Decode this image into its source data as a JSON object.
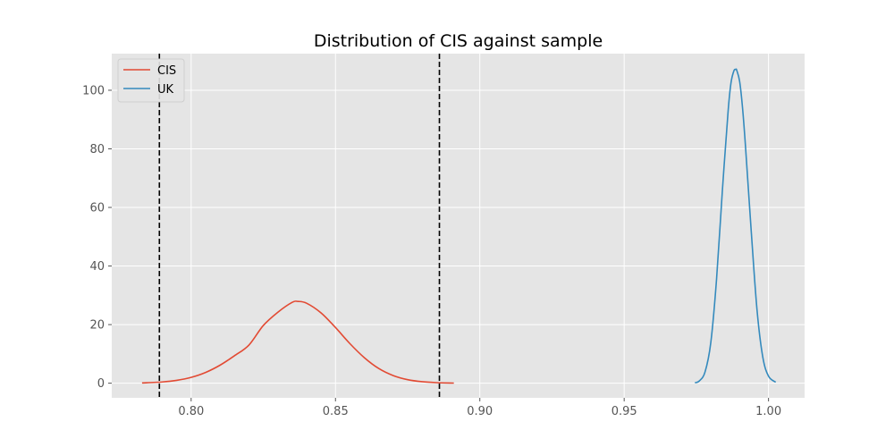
{
  "chart_data": {
    "type": "line",
    "title": "Distribution of CIS against sample",
    "xlabel": "",
    "ylabel": "",
    "xlim": [
      0.7725,
      1.0125
    ],
    "ylim": [
      -5,
      112.5
    ],
    "xticks": [
      0.8,
      0.85,
      0.9,
      0.95,
      1.0
    ],
    "xtick_labels": [
      "0.80",
      "0.85",
      "0.90",
      "0.95",
      "1.00"
    ],
    "yticks": [
      0,
      20,
      40,
      60,
      80,
      100
    ],
    "ytick_labels": [
      "0",
      "20",
      "40",
      "60",
      "80",
      "100"
    ],
    "grid": true,
    "legend_position": "top-left",
    "background": "#e5e5e5",
    "series": [
      {
        "name": "CIS",
        "color": "#e24a33",
        "x": [
          0.783,
          0.79,
          0.795,
          0.8,
          0.805,
          0.81,
          0.815,
          0.82,
          0.825,
          0.83,
          0.835,
          0.837,
          0.84,
          0.845,
          0.85,
          0.855,
          0.86,
          0.865,
          0.87,
          0.875,
          0.88,
          0.885,
          0.891
        ],
        "y": [
          0.08,
          0.42,
          0.97,
          1.98,
          3.66,
          6.14,
          9.36,
          13.0,
          19.7,
          24.2,
          27.6,
          27.9,
          27.3,
          24.0,
          19.0,
          13.5,
          8.7,
          5.0,
          2.6,
          1.2,
          0.5,
          0.19,
          0.04
        ]
      },
      {
        "name": "UK",
        "color": "#348abd",
        "x": [
          0.9745,
          0.976,
          0.978,
          0.98,
          0.982,
          0.984,
          0.986,
          0.987,
          0.988,
          0.9887,
          0.989,
          0.99,
          0.991,
          0.992,
          0.994,
          0.996,
          0.998,
          1.0,
          1.0025
        ],
        "y": [
          0.13,
          0.75,
          3.8,
          13.8,
          35.5,
          65.5,
          92.8,
          102.5,
          106.6,
          107.1,
          106.8,
          103.0,
          94.0,
          81.2,
          52.1,
          25.2,
          9.0,
          2.4,
          0.33
        ]
      }
    ],
    "vlines": [
      {
        "x": 0.789,
        "style": "dashed",
        "color": "#000000"
      },
      {
        "x": 0.886,
        "style": "dashed",
        "color": "#000000"
      }
    ]
  }
}
